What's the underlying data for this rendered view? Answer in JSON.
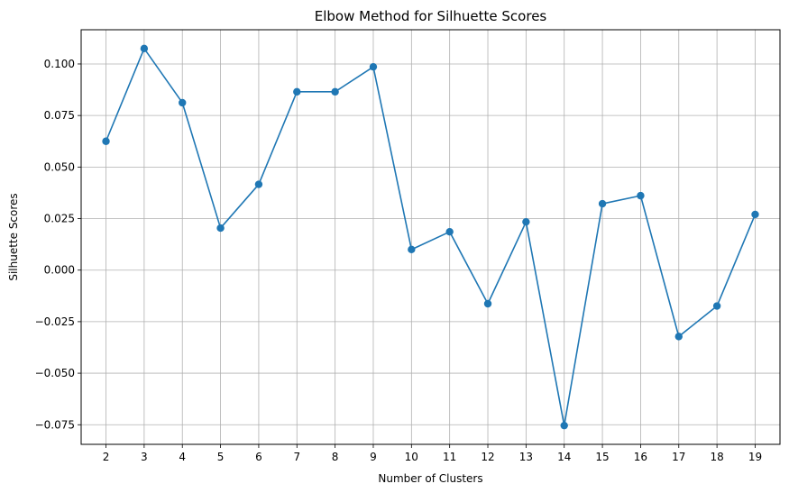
{
  "chart_data": {
    "type": "line",
    "title": "Elbow Method for Silhuette Scores",
    "xlabel": "Number of Clusters",
    "ylabel": "Silhuette Scores",
    "x": [
      2,
      3,
      4,
      5,
      6,
      7,
      8,
      9,
      10,
      11,
      12,
      13,
      14,
      15,
      16,
      17,
      18,
      19
    ],
    "series": [
      {
        "values": [
          0.0625,
          0.1075,
          0.0812,
          0.0204,
          0.0416,
          0.0865,
          0.0865,
          0.0986,
          0.01,
          0.0186,
          -0.0163,
          0.0234,
          -0.0754,
          0.0322,
          0.0361,
          -0.0322,
          -0.0174,
          0.027
        ],
        "color": "#1f77b4",
        "marker": "circle"
      }
    ],
    "x_ticks": [
      "2",
      "3",
      "4",
      "5",
      "6",
      "7",
      "8",
      "9",
      "10",
      "11",
      "12",
      "13",
      "14",
      "15",
      "16",
      "17",
      "18",
      "19"
    ],
    "y_ticks": [
      -0.075,
      -0.05,
      -0.025,
      0.0,
      0.025,
      0.05,
      0.075,
      0.1
    ],
    "y_tick_labels": [
      "−0.075",
      "−0.050",
      "−0.025",
      "0.000",
      "0.025",
      "0.050",
      "0.075",
      "0.100"
    ],
    "xlim": [
      1.35,
      19.65
    ],
    "ylim": [
      -0.0845,
      0.1166
    ],
    "grid": true
  }
}
